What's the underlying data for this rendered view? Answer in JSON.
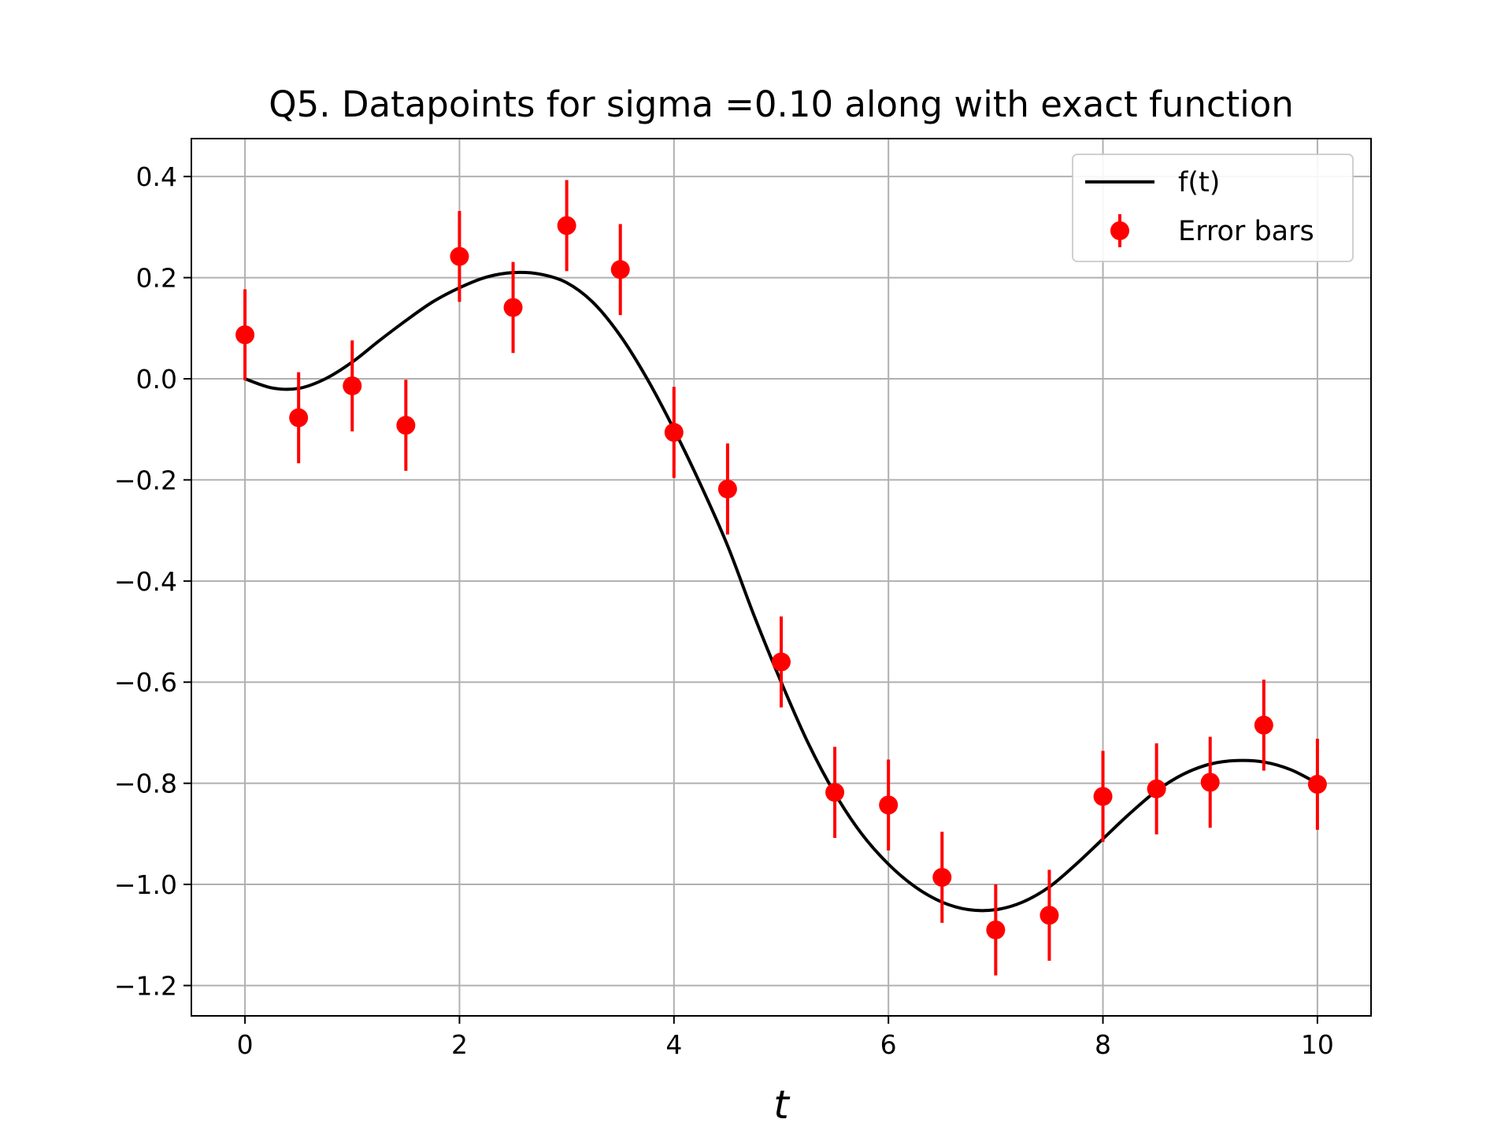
{
  "chart_data": {
    "type": "scatter",
    "title": "Q5. Datapoints for sigma =0.10 along with exact function",
    "xlabel": "t",
    "ylabel": "",
    "xlim": [
      -0.5,
      10.5
    ],
    "ylim": [
      -1.26,
      0.475
    ],
    "x_ticks": [
      0,
      2,
      4,
      6,
      8,
      10
    ],
    "x_tick_labels": [
      "0",
      "2",
      "4",
      "6",
      "8",
      "10"
    ],
    "y_ticks": [
      0.4,
      0.2,
      0.0,
      -0.2,
      -0.4,
      -0.6,
      -0.8,
      -1.0,
      -1.2
    ],
    "y_tick_labels": [
      "0.4",
      "0.2",
      "0.0",
      "−0.2",
      "−0.4",
      "−0.6",
      "−0.8",
      "−1.0",
      "−1.2"
    ],
    "grid": true,
    "legend_position": "top-right",
    "series": [
      {
        "name": "f(t)",
        "kind": "line",
        "color": "#000000",
        "x": [
          0,
          0.25,
          0.5,
          0.75,
          1.0,
          1.25,
          1.5,
          1.75,
          2.0,
          2.25,
          2.5,
          2.75,
          3.0,
          3.25,
          3.5,
          3.75,
          4.0,
          4.25,
          4.5,
          4.75,
          5.0,
          5.25,
          5.5,
          5.75,
          6.0,
          6.25,
          6.5,
          6.75,
          7.0,
          7.25,
          7.5,
          7.75,
          8.0,
          8.25,
          8.5,
          8.75,
          9.0,
          9.25,
          9.5,
          9.75,
          10.0
        ],
        "y": [
          0.0,
          -0.018,
          -0.019,
          0.0,
          0.033,
          0.075,
          0.115,
          0.152,
          0.18,
          0.201,
          0.21,
          0.207,
          0.19,
          0.15,
          0.085,
          0.0,
          -0.1,
          -0.21,
          -0.33,
          -0.47,
          -0.6,
          -0.72,
          -0.82,
          -0.9,
          -0.96,
          -1.005,
          -1.035,
          -1.05,
          -1.05,
          -1.035,
          -1.005,
          -0.96,
          -0.91,
          -0.86,
          -0.815,
          -0.782,
          -0.762,
          -0.755,
          -0.758,
          -0.773,
          -0.8
        ]
      },
      {
        "name": "Error bars",
        "kind": "errorbar",
        "color": "#ff0000",
        "error": 0.09,
        "x": [
          0,
          0.5,
          1.0,
          1.5,
          2.0,
          2.5,
          3.0,
          3.5,
          4.0,
          4.5,
          5.0,
          5.5,
          6.0,
          6.5,
          7.0,
          7.5,
          8.0,
          8.5,
          9.0,
          9.5,
          10.0
        ],
        "y": [
          0.087,
          -0.077,
          -0.014,
          -0.092,
          0.242,
          0.141,
          0.303,
          0.216,
          -0.106,
          -0.218,
          -0.56,
          -0.818,
          -0.843,
          -0.986,
          -1.09,
          -1.061,
          -0.826,
          -0.811,
          -0.798,
          -0.685,
          -0.802
        ]
      }
    ]
  }
}
